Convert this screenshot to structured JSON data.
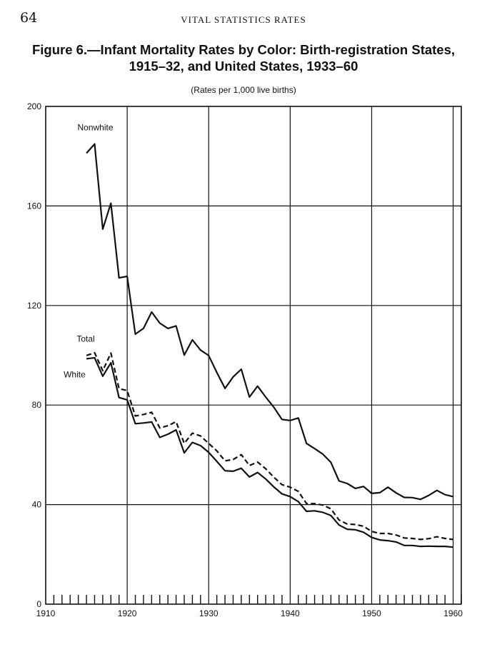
{
  "page": {
    "number": "64",
    "running_head": "VITAL STATISTICS RATES"
  },
  "chart_data": {
    "type": "line",
    "title_line1": "Figure 6.—Infant Mortality Rates by Color: Birth-registration States,",
    "title_line2": "1915–32, and United States, 1933–60",
    "subtitle": "(Rates per 1,000 live births)",
    "xlabel": "",
    "ylabel": "",
    "xlim": [
      1910,
      1961
    ],
    "ylim": [
      0,
      200
    ],
    "x_ticks": [
      1910,
      1920,
      1930,
      1940,
      1950,
      1960
    ],
    "y_ticks": [
      0,
      40,
      80,
      120,
      160,
      200
    ],
    "grid": true,
    "x": [
      1915,
      1916,
      1917,
      1918,
      1919,
      1920,
      1921,
      1922,
      1923,
      1924,
      1925,
      1926,
      1927,
      1928,
      1929,
      1930,
      1931,
      1932,
      1933,
      1934,
      1935,
      1936,
      1937,
      1938,
      1939,
      1940,
      1941,
      1942,
      1943,
      1944,
      1945,
      1946,
      1947,
      1948,
      1949,
      1950,
      1951,
      1952,
      1953,
      1954,
      1955,
      1956,
      1957,
      1958,
      1959,
      1960
    ],
    "series": [
      {
        "name": "Nonwhite",
        "style": "solid",
        "values": [
          181.2,
          184.9,
          150.7,
          161.1,
          131.1,
          131.7,
          108.5,
          110.8,
          117.4,
          112.9,
          110.8,
          111.8,
          100.1,
          106.2,
          102.1,
          99.9,
          93.1,
          86.7,
          91.3,
          94.4,
          83.2,
          87.6,
          83.2,
          79.1,
          74.2,
          73.8,
          74.8,
          64.6,
          62.5,
          60.3,
          57.0,
          49.5,
          48.5,
          46.5,
          47.3,
          44.5,
          44.8,
          47.0,
          44.7,
          42.9,
          42.8,
          42.1,
          43.7,
          45.7,
          44.0,
          43.2
        ]
      },
      {
        "name": "Total",
        "style": "dashed",
        "values": [
          99.9,
          101.0,
          93.8,
          100.9,
          86.6,
          85.8,
          75.6,
          76.2,
          77.1,
          70.8,
          71.7,
          73.3,
          64.6,
          68.7,
          67.6,
          64.6,
          61.6,
          57.6,
          58.1,
          60.1,
          55.7,
          57.1,
          54.4,
          51.0,
          48.0,
          47.0,
          45.3,
          40.4,
          40.4,
          39.8,
          38.3,
          33.8,
          32.2,
          32.0,
          31.3,
          29.2,
          28.4,
          28.4,
          27.8,
          26.6,
          26.4,
          26.0,
          26.3,
          27.1,
          26.4,
          26.0
        ]
      },
      {
        "name": "White",
        "style": "solid",
        "values": [
          98.6,
          99.0,
          91.6,
          97.0,
          83.0,
          82.1,
          72.5,
          72.8,
          73.2,
          67.0,
          68.3,
          70.0,
          60.8,
          65.0,
          63.7,
          61.0,
          57.4,
          53.6,
          53.4,
          54.6,
          51.1,
          52.9,
          50.3,
          47.1,
          44.3,
          43.2,
          41.2,
          37.3,
          37.5,
          36.9,
          35.6,
          31.8,
          30.1,
          29.9,
          28.9,
          26.8,
          25.8,
          25.5,
          25.0,
          23.6,
          23.6,
          23.2,
          23.3,
          23.2,
          23.2,
          22.9
        ]
      }
    ]
  }
}
